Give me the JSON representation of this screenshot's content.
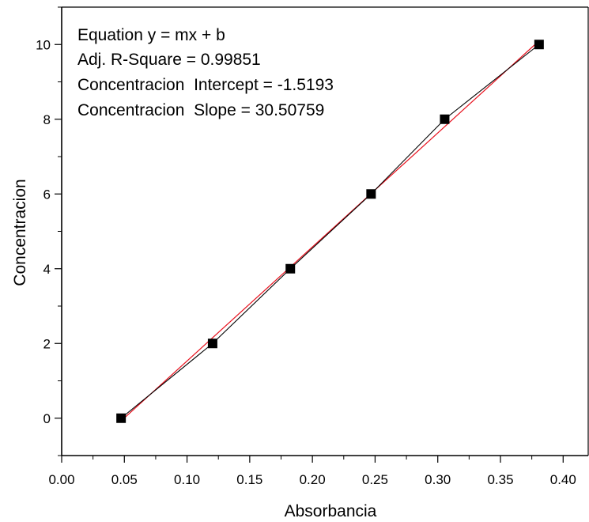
{
  "chart_data": {
    "type": "scatter",
    "title": "",
    "xlabel": "Absorbancia",
    "ylabel": "Concentracion",
    "xlim": [
      0.0,
      0.42
    ],
    "ylim": [
      -1.0,
      11.0
    ],
    "x_ticks": [
      "0.00",
      "0.05",
      "0.10",
      "0.15",
      "0.20",
      "0.25",
      "0.30",
      "0.35",
      "0.40"
    ],
    "y_ticks": [
      "0",
      "2",
      "4",
      "6",
      "8",
      "10"
    ],
    "grid": false,
    "series": [
      {
        "type": "line+markers",
        "color": "#000000",
        "marker": "square",
        "x": [
          0.0474,
          0.1204,
          0.1824,
          0.2468,
          0.3055,
          0.3808
        ],
        "y": [
          0,
          2,
          4,
          6,
          8,
          10
        ]
      }
    ],
    "fit": {
      "color": "#e8101c",
      "slope": 30.50759,
      "intercept": -1.5193,
      "x_range": [
        0.0474,
        0.3808
      ]
    },
    "annotations": [
      "Equation y = mx + b",
      "Adj. R-Square = 0.99851",
      "Concentracion  Intercept = -1.5193",
      "Concentracion  Slope = 30.50759"
    ]
  }
}
